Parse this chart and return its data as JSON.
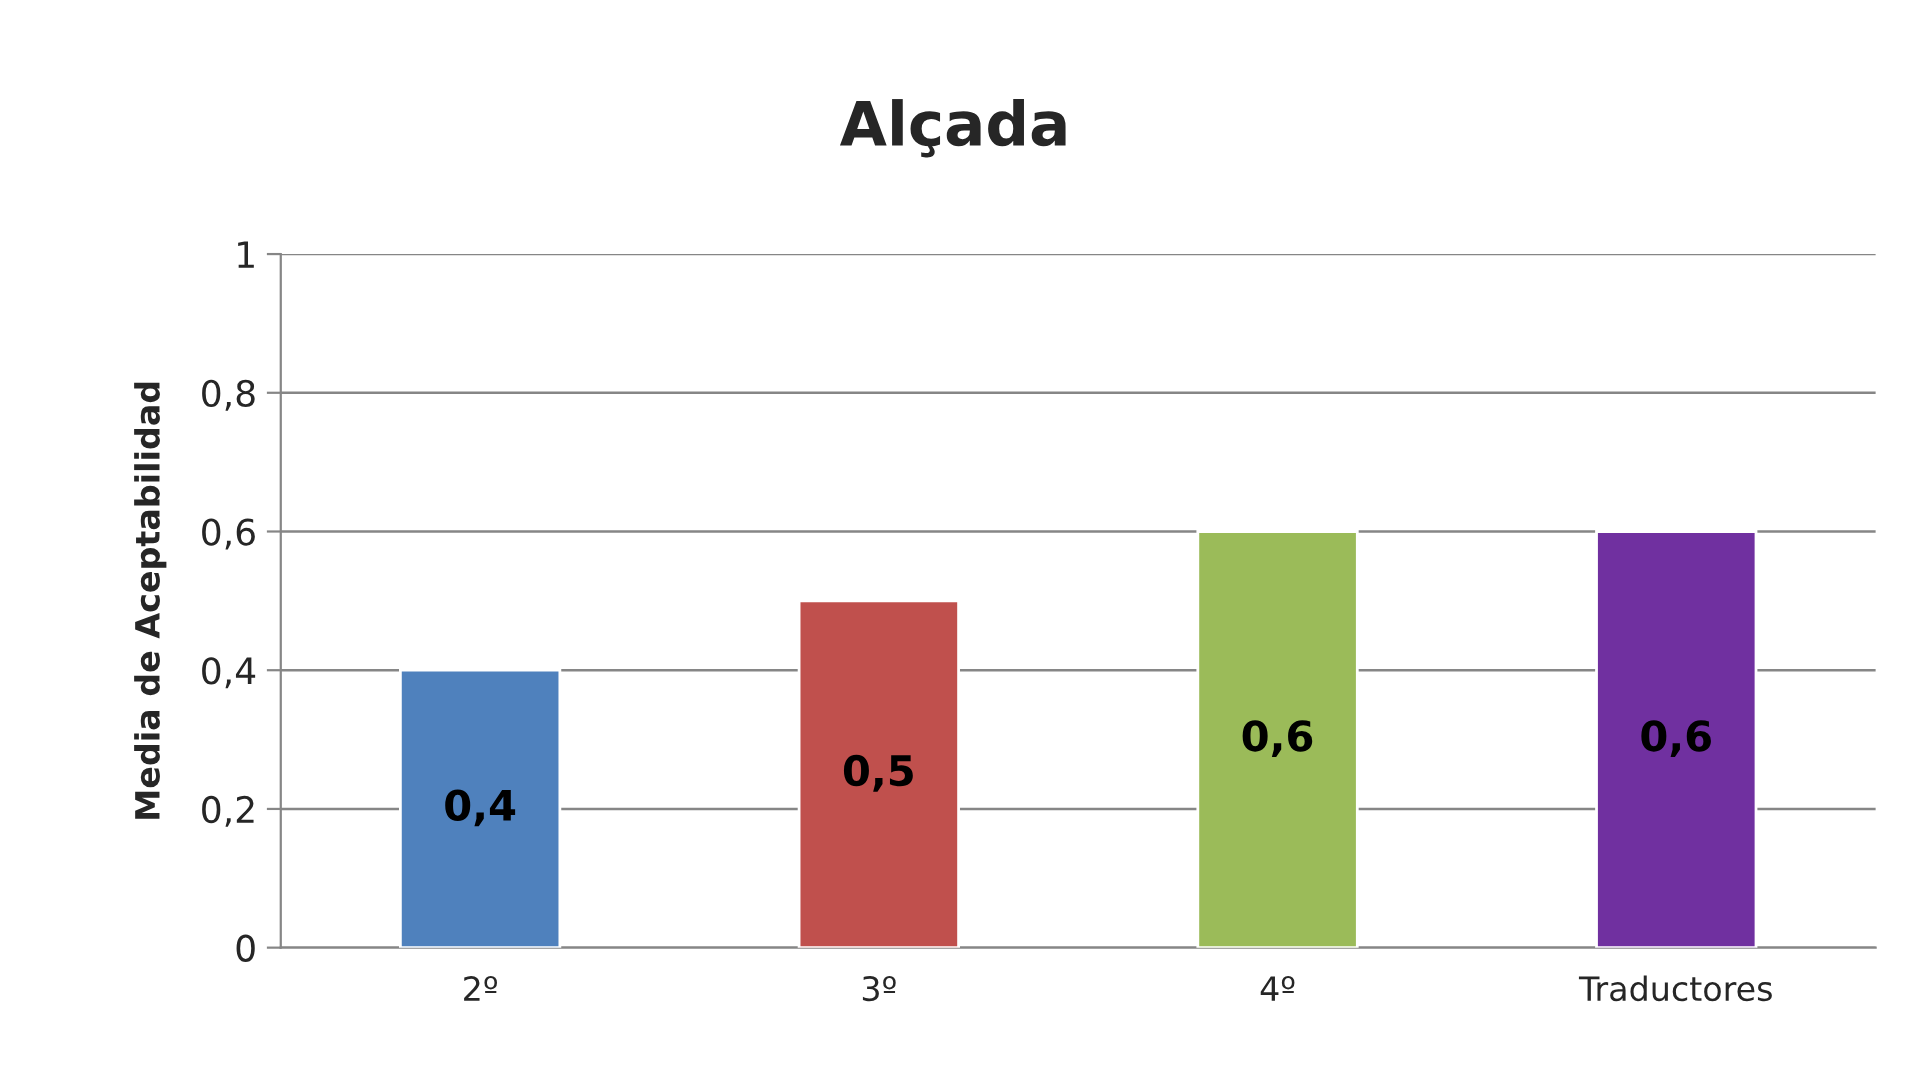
{
  "chart_data": {
    "type": "bar",
    "title": "Alçada",
    "ylabel": "Media de Aceptabilidad",
    "categories": [
      "2º",
      "3º",
      "4º",
      "Traductores"
    ],
    "values": [
      0.4,
      0.5,
      0.6,
      0.6
    ],
    "colors": [
      "#4f81bd",
      "#c0504d",
      "#9bbb59",
      "#7030a0"
    ],
    "value_labels": [
      "0,4",
      "0,5",
      "0,6",
      "0,6"
    ],
    "ylim": [
      0,
      1
    ],
    "yticks": [
      0,
      {
        "value": 0.2,
        "label": "0,2"
      },
      {
        "value": 0.4,
        "label": "0,4"
      },
      {
        "value": 0.6,
        "label": "0,6"
      },
      {
        "value": 0.8,
        "label": "0,8"
      },
      1
    ],
    "grid": "y"
  }
}
